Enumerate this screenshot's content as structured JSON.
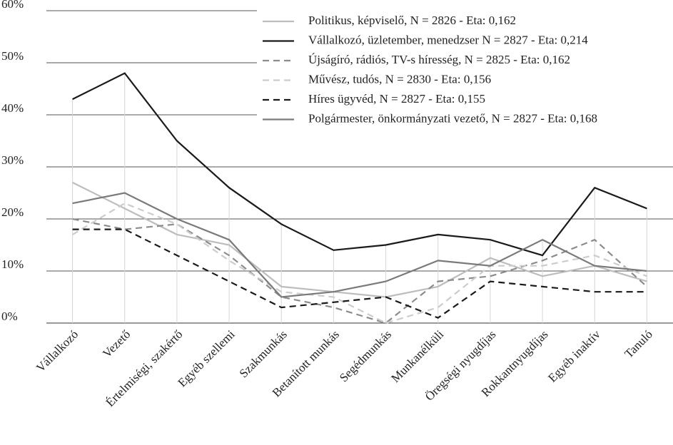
{
  "chart_data": {
    "type": "line",
    "categories": [
      "Vállalkozó",
      "Vezető",
      "Értelmiségi, szakértő",
      "Egyéb szellemi",
      "Szakmunkás",
      "Betanított munkás",
      "Segédmunkás",
      "Munkanélküli",
      "Öregségi nyugdíjas",
      "Rokkantnyugdíjas",
      "Egyéb inaktív",
      "Tanuló"
    ],
    "series": [
      {
        "name": "Politikus, képviselő, N = 2826 - Eta: 0,162",
        "color": "#bdbdbd",
        "style": "solid",
        "values": [
          27,
          22,
          17,
          15,
          7,
          6,
          5,
          7,
          12.5,
          9,
          11,
          8
        ]
      },
      {
        "name": "Vállalkozó, üzletember, menedzser N = 2827 - Eta: 0,214",
        "color": "#1a1a1a",
        "style": "solid",
        "values": [
          43,
          48,
          35,
          26,
          19,
          14,
          15,
          17,
          16,
          13,
          26,
          22
        ]
      },
      {
        "name": "Újságíró, rádiós, TV-s híresség, N = 2825 - Eta: 0,162",
        "color": "#8c8c8c",
        "style": "dashed",
        "values": [
          20,
          18,
          19,
          13,
          5,
          3,
          0,
          8,
          9,
          12,
          16,
          7
        ]
      },
      {
        "name": "Művész, tudós, N = 2830 - Eta: 0,156",
        "color": "#cccccc",
        "style": "dashed",
        "values": [
          17,
          23,
          19,
          12,
          6,
          5,
          0,
          3,
          11,
          11,
          13,
          9
        ]
      },
      {
        "name": "Híres ügyvéd, N = 2827 - Eta: 0,155",
        "color": "#1a1a1a",
        "style": "dashed",
        "values": [
          18,
          18,
          13,
          8,
          3,
          4,
          5,
          1,
          8,
          7,
          6,
          6
        ]
      },
      {
        "name": "Polgármester, önkormányzati vezető, N = 2827 - Eta: 0,168",
        "color": "#7a7a7a",
        "style": "solid",
        "values": [
          23,
          25,
          20,
          16,
          5,
          6,
          8,
          12,
          11,
          16,
          11,
          10
        ]
      }
    ],
    "ylim": [
      0,
      60
    ],
    "yticks": [
      {
        "value": 0,
        "label": "0%"
      },
      {
        "value": 10,
        "label": "10%"
      },
      {
        "value": 20,
        "label": "20%"
      },
      {
        "value": 30,
        "label": "30%"
      },
      {
        "value": 40,
        "label": "40%"
      },
      {
        "value": 50,
        "label": "50%"
      },
      {
        "value": 60,
        "label": "60%"
      }
    ],
    "grid": true,
    "legend": "upper right"
  }
}
